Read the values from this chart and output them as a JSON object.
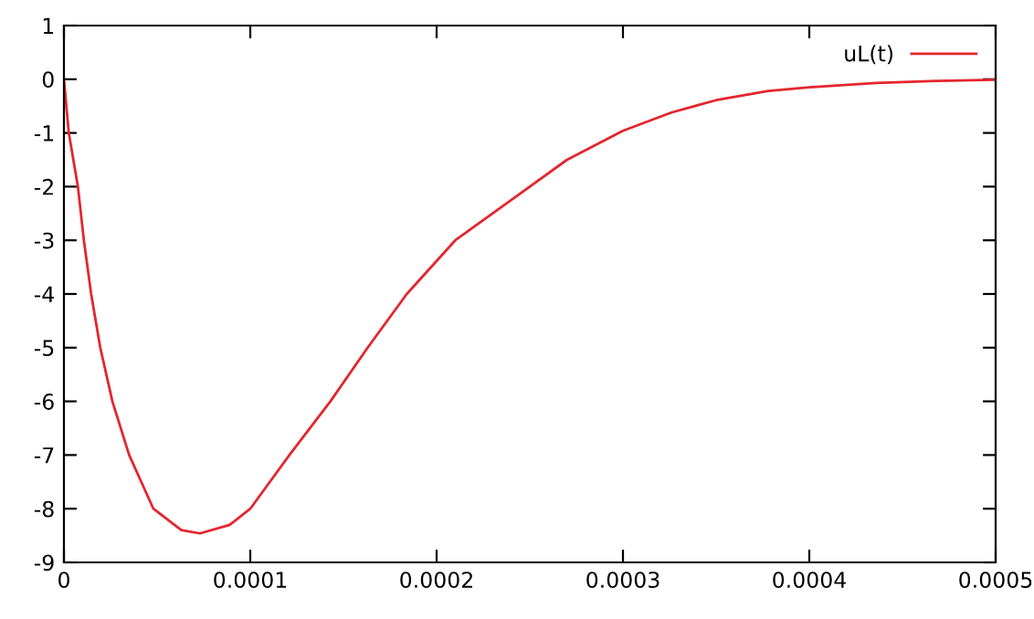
{
  "chart_data": {
    "type": "line",
    "x": [
      0,
      2.6e-06,
      7.5e-06,
      1.07e-05,
      1.46e-05,
      1.95e-05,
      2.6e-05,
      3.5e-05,
      4.8e-05,
      6.3e-05,
      7.3e-05,
      8.9e-05,
      0.0001,
      0.000121,
      0.000143,
      0.000163,
      0.000184,
      0.00021,
      0.00024,
      0.00027,
      0.0003,
      0.000326,
      0.00035,
      0.000378,
      0.0004,
      0.000436,
      0.000469,
      0.0005
    ],
    "series": [
      {
        "name": "uL(t)",
        "color": "#e3262e",
        "values": [
          0,
          -1.0,
          -2.0,
          -3.0,
          -4.0,
          -5.0,
          -6.0,
          -7.0,
          -8.0,
          -8.4,
          -8.46,
          -8.3,
          -8.0,
          -7.0,
          -6.0,
          -5.0,
          -4.0,
          -3.0,
          -2.25,
          -1.5,
          -0.96,
          -0.62,
          -0.39,
          -0.22,
          -0.15,
          -0.07,
          -0.03,
          -0.01
        ]
      }
    ],
    "xlim": [
      0,
      0.0005
    ],
    "xticks": [
      0,
      0.0001,
      0.0002,
      0.0003,
      0.0004,
      0.0005
    ],
    "ylim": [
      -9,
      1
    ],
    "yticks": [
      -9,
      -8,
      -7,
      -6,
      -5,
      -4,
      -3,
      -2,
      -1,
      0,
      1
    ],
    "grid": false,
    "legend": "top right",
    "marker": "none",
    "line_style": "solid"
  }
}
